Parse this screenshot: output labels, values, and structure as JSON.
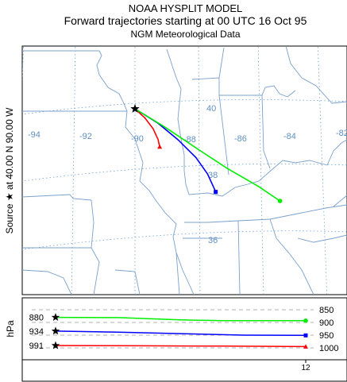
{
  "header": {
    "title": "NOAA HYSPLIT MODEL",
    "subtitle": "Forward trajectories starting at 00 UTC 16 Oct 95",
    "data_source": "NGM  Meteorological Data"
  },
  "source_label": "Source ★ at    40.00 N    90.00 W",
  "map": {
    "longitude_labels": [
      "-94",
      "-92",
      "-90",
      "-88",
      "-86",
      "-84",
      "-82"
    ],
    "latitude_labels": [
      "40",
      "38",
      "36"
    ],
    "source": {
      "lat": 40.0,
      "lon": -90.0
    },
    "trajectories": [
      {
        "color": "#ff0000",
        "end_marker": "triangle",
        "points": [
          [
            -90.0,
            40.0
          ],
          [
            -89.7,
            39.75
          ],
          [
            -89.45,
            39.45
          ],
          [
            -89.3,
            39.15
          ],
          [
            -89.25,
            38.95
          ]
        ]
      },
      {
        "color": "#0000ff",
        "end_marker": "square",
        "points": [
          [
            -90.0,
            40.0
          ],
          [
            -89.3,
            39.6
          ],
          [
            -88.7,
            39.15
          ],
          [
            -88.15,
            38.65
          ],
          [
            -87.8,
            38.2
          ],
          [
            -87.55,
            37.7
          ]
        ]
      },
      {
        "color": "#00ee00",
        "end_marker": "circle",
        "points": [
          [
            -90.0,
            40.0
          ],
          [
            -89.1,
            39.5
          ],
          [
            -88.2,
            38.95
          ],
          [
            -87.2,
            38.35
          ],
          [
            -86.25,
            37.85
          ],
          [
            -85.6,
            37.45
          ]
        ]
      }
    ]
  },
  "vertical_profile": {
    "axis_label": "hPa",
    "start_labels": [
      "880",
      "934",
      "991"
    ],
    "pressure_ticks": [
      "850",
      "900",
      "950",
      "1000"
    ],
    "time_tick": "12",
    "series": [
      {
        "color": "#00ee00",
        "marker": "circle",
        "values": [
          [
            0,
            880
          ],
          [
            3,
            881
          ],
          [
            6,
            890
          ],
          [
            8,
            893
          ],
          [
            12,
            893
          ]
        ]
      },
      {
        "color": "#0000ff",
        "marker": "square",
        "values": [
          [
            0,
            934
          ],
          [
            3,
            938
          ],
          [
            6,
            944
          ],
          [
            9,
            950
          ],
          [
            12,
            951
          ]
        ]
      },
      {
        "color": "#ff0000",
        "marker": "triangle",
        "values": [
          [
            0,
            991
          ],
          [
            4,
            992
          ],
          [
            8,
            993
          ],
          [
            12,
            995
          ]
        ]
      }
    ]
  }
}
